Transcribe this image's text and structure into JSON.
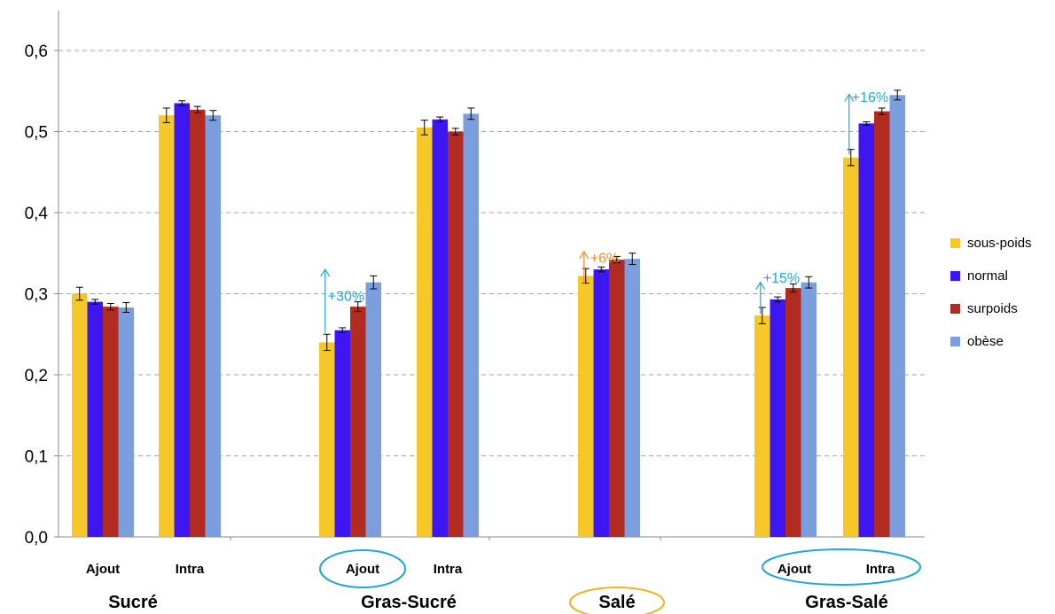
{
  "chart_data": {
    "type": "bar",
    "ylim": [
      0,
      0.65
    ],
    "yticks": [
      "0,0",
      "0,1",
      "0,2",
      "0,3",
      "0,4",
      "0,5",
      "0,6"
    ],
    "grid": true,
    "legend_position": "right",
    "groups": [
      {
        "name": "Sucré",
        "subcategories": [
          "Ajout",
          "Intra"
        ]
      },
      {
        "name": "Gras-Sucré",
        "subcategories": [
          "Ajout",
          "Intra"
        ]
      },
      {
        "name": "Salé",
        "subcategories": [
          ""
        ]
      },
      {
        "name": "Gras-Salé",
        "subcategories": [
          "Ajout",
          "Intra"
        ]
      }
    ],
    "categories": [
      "Sucré Ajout",
      "Sucré Intra",
      "Gras-Sucré Ajout",
      "Gras-Sucré Intra",
      "Salé",
      "Gras-Salé Ajout",
      "Gras-Salé Intra"
    ],
    "series": [
      {
        "name": "sous-poids",
        "color": "#f5c827",
        "values": [
          0.3,
          0.52,
          0.24,
          0.505,
          0.322,
          0.273,
          0.468
        ],
        "errors": [
          0.008,
          0.009,
          0.01,
          0.009,
          0.009,
          0.01,
          0.01
        ]
      },
      {
        "name": "normal",
        "color": "#3d16f2",
        "values": [
          0.29,
          0.535,
          0.255,
          0.515,
          0.33,
          0.293,
          0.51
        ],
        "errors": [
          0.003,
          0.003,
          0.003,
          0.003,
          0.003,
          0.003,
          0.002
        ]
      },
      {
        "name": "surpoids",
        "color": "#b22b20",
        "values": [
          0.284,
          0.527,
          0.284,
          0.5,
          0.342,
          0.307,
          0.525
        ],
        "errors": [
          0.004,
          0.004,
          0.006,
          0.004,
          0.004,
          0.005,
          0.004
        ]
      },
      {
        "name": "obèse",
        "color": "#7b9fde",
        "values": [
          0.283,
          0.52,
          0.314,
          0.522,
          0.343,
          0.314,
          0.545
        ],
        "errors": [
          0.006,
          0.006,
          0.008,
          0.007,
          0.007,
          0.007,
          0.006
        ]
      }
    ],
    "annotations": [
      {
        "text": "+30%",
        "category": 2,
        "from": 0.252,
        "to": 0.33,
        "color": "#1fa8d6"
      },
      {
        "text": "+6%",
        "category": 4,
        "from": 0.312,
        "to": 0.352,
        "color": "#f08a28"
      },
      {
        "text": "+15%",
        "category": 5,
        "from": 0.275,
        "to": 0.314,
        "color": "#1fa8d6"
      },
      {
        "text": "+16%",
        "category": 6,
        "from": 0.472,
        "to": 0.546,
        "color": "#1fa8d6"
      }
    ],
    "highlights": [
      {
        "target": "Gras-Sucré Ajout",
        "color": "#1fa8d6"
      },
      {
        "target": "Salé",
        "color": "#f0b21e"
      },
      {
        "target": "Gras-Salé subcategories",
        "color": "#1fa8d6"
      }
    ]
  }
}
